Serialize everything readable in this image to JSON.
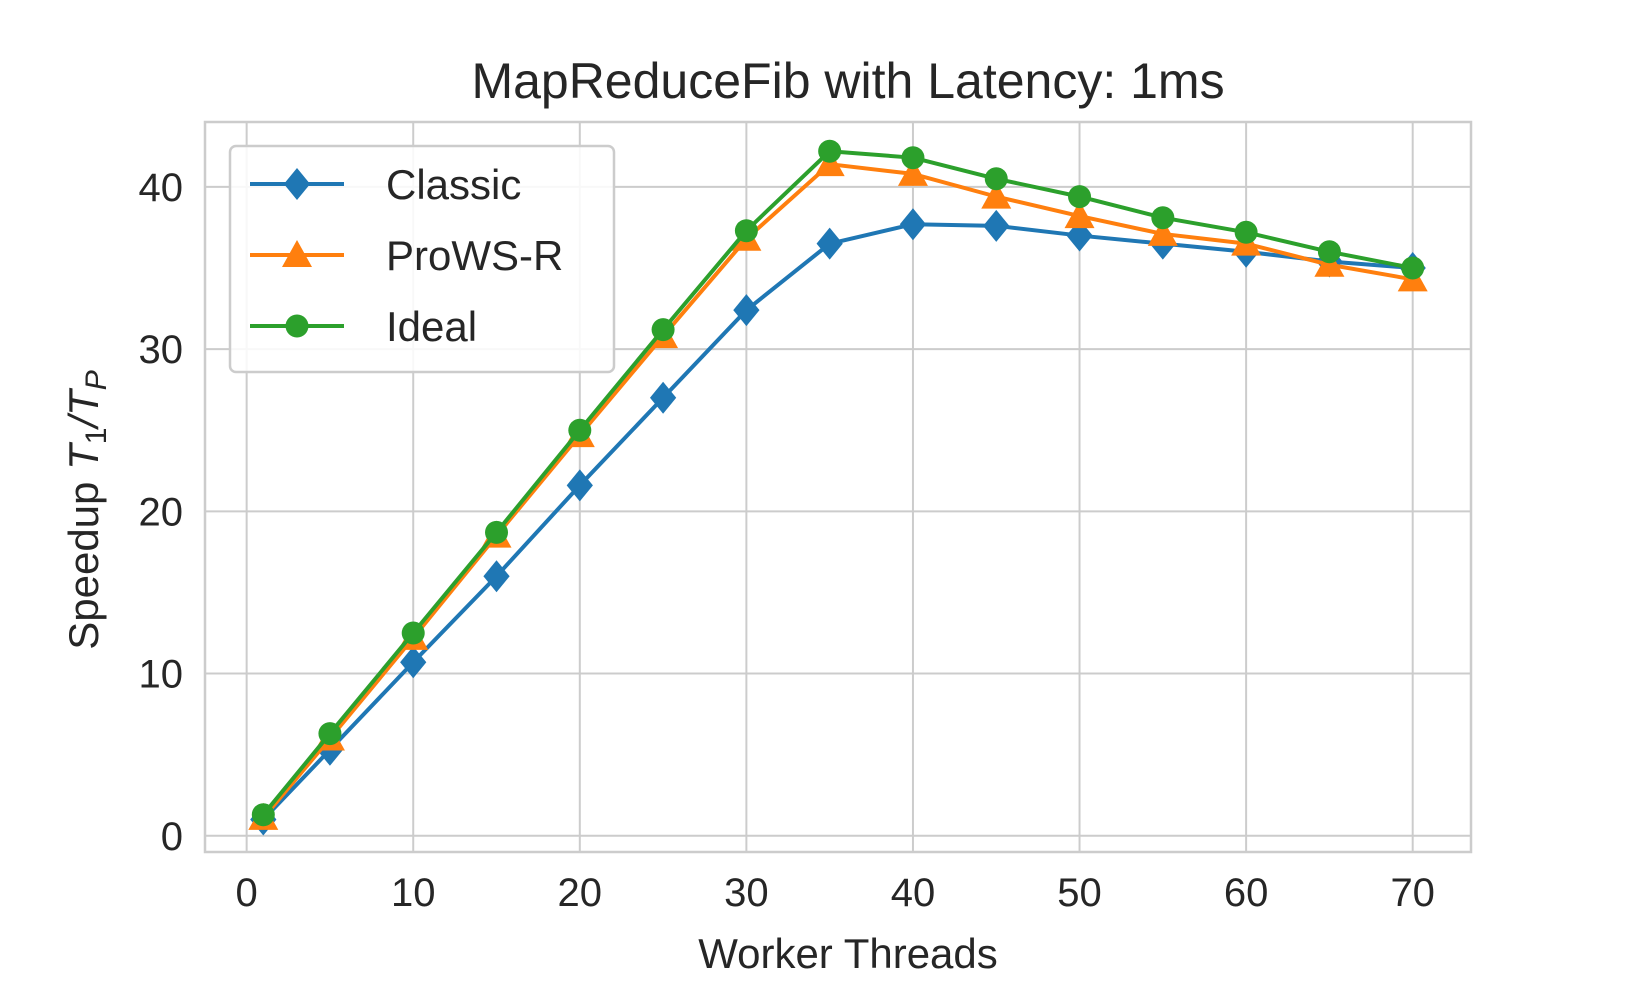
{
  "chart_data": {
    "type": "line",
    "title": "MapReduceFib with Latency: 1ms",
    "xlabel": "Worker Threads",
    "ylabel_prefix": "Speedup ",
    "ylabel_math": "T1/TP",
    "xlim": [
      -2.5,
      73.5
    ],
    "ylim": [
      -1,
      44
    ],
    "x_ticks": [
      0,
      10,
      20,
      30,
      40,
      50,
      60,
      70
    ],
    "y_ticks": [
      0,
      10,
      20,
      30,
      40
    ],
    "x_tick_labels": [
      "0",
      "10",
      "20",
      "30",
      "40",
      "50",
      "60",
      "70"
    ],
    "y_tick_labels": [
      "0",
      "10",
      "20",
      "30",
      "40"
    ],
    "grid": true,
    "legend_position": "top-left",
    "x": [
      1,
      5,
      10,
      15,
      20,
      25,
      30,
      35,
      40,
      45,
      50,
      55,
      60,
      65,
      70
    ],
    "series": [
      {
        "name": "Classic",
        "color": "#1f77b4",
        "marker": "diamond",
        "values": [
          1.0,
          5.3,
          10.7,
          16.0,
          21.6,
          27.0,
          32.4,
          36.5,
          37.7,
          37.6,
          37.0,
          36.5,
          36.0,
          35.4,
          35.0
        ]
      },
      {
        "name": "ProWS-R",
        "color": "#ff7f0e",
        "marker": "triangle",
        "values": [
          1.1,
          6.0,
          12.2,
          18.5,
          24.7,
          30.8,
          36.8,
          41.4,
          40.8,
          39.4,
          38.2,
          37.1,
          36.5,
          35.2,
          34.3
        ]
      },
      {
        "name": "Ideal",
        "color": "#2ca02c",
        "marker": "circle",
        "values": [
          1.3,
          6.3,
          12.5,
          18.7,
          25.0,
          31.2,
          37.3,
          42.2,
          41.8,
          40.5,
          39.4,
          38.1,
          37.2,
          36.0,
          35.0
        ]
      }
    ]
  }
}
